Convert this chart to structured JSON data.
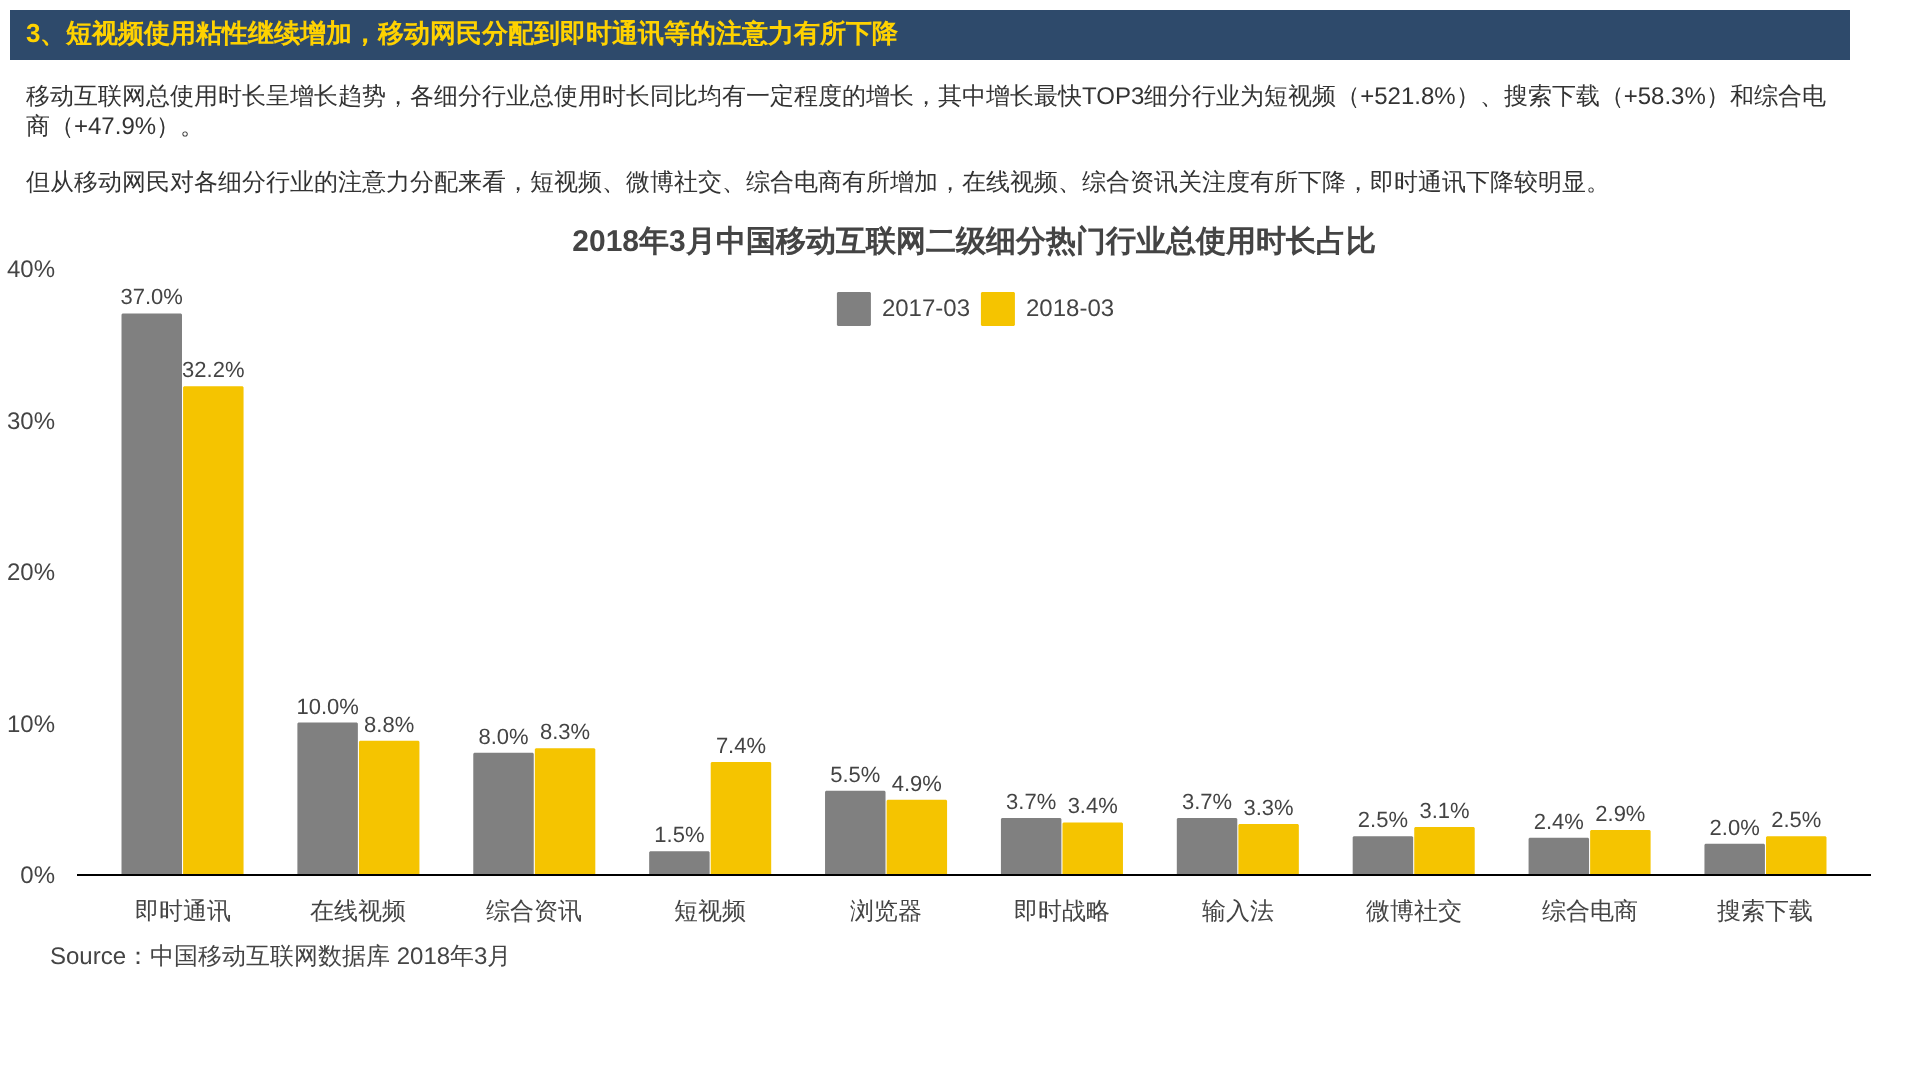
{
  "chart_data": {
    "type": "bar",
    "title": "2018年3月中国移动互联网二级细分热门行业总使用时长占比",
    "annotations": [
      "3、短视频使用粘性继续增加，移动网民分配到即时通讯等的注意力有所下降",
      "移动互联网总使用时长呈增长趋势，各细分行业总使用时长同比均有一定程度的增长，其中增长最快TOP3细分行业为短视频（+521.8%）、搜索下载（+58.3%）和综合电商（+47.9%）。",
      "但从移动网民对各细分行业的注意力分配来看，短视频、微博社交、综合电商有所增加，在线视频、综合资讯关注度有所下降，即时通讯下降较明显。",
      "Source：中国移动互联网数据库 2018年3月"
    ],
    "categories": [
      "即时通讯",
      "在线视频",
      "综合资讯",
      "短视频",
      "浏览器",
      "即时战略",
      "输入法",
      "微博社交",
      "综合电商",
      "搜索下载"
    ],
    "series": [
      {
        "name": "2017-03",
        "color": "#808080",
        "values": [
          37.0,
          10.0,
          8.0,
          1.5,
          5.5,
          3.7,
          3.7,
          2.5,
          2.4,
          2.0
        ],
        "value_labels": [
          "37.0%",
          "10.0%",
          "8.0%",
          "1.5%",
          "5.5%",
          "3.7%",
          "3.7%",
          "2.5%",
          "2.4%",
          "2.0%"
        ]
      },
      {
        "name": "2018-03",
        "color": "#f5c400",
        "values": [
          32.2,
          8.8,
          8.3,
          7.4,
          4.9,
          3.4,
          3.3,
          3.1,
          2.9,
          2.5
        ],
        "value_labels": [
          "32.2%",
          "8.8%",
          "8.3%",
          "7.4%",
          "4.9%",
          "3.4%",
          "3.3%",
          "3.1%",
          "2.9%",
          "2.5%"
        ]
      }
    ],
    "ylim": [
      0,
      40
    ],
    "yticks": [
      {
        "value": 0,
        "label": "0%"
      },
      {
        "value": 10,
        "label": "10%"
      },
      {
        "value": 20,
        "label": "20%"
      },
      {
        "value": 30,
        "label": "30%"
      },
      {
        "value": 40,
        "label": "40%"
      }
    ],
    "grid": false,
    "legend": "top"
  }
}
